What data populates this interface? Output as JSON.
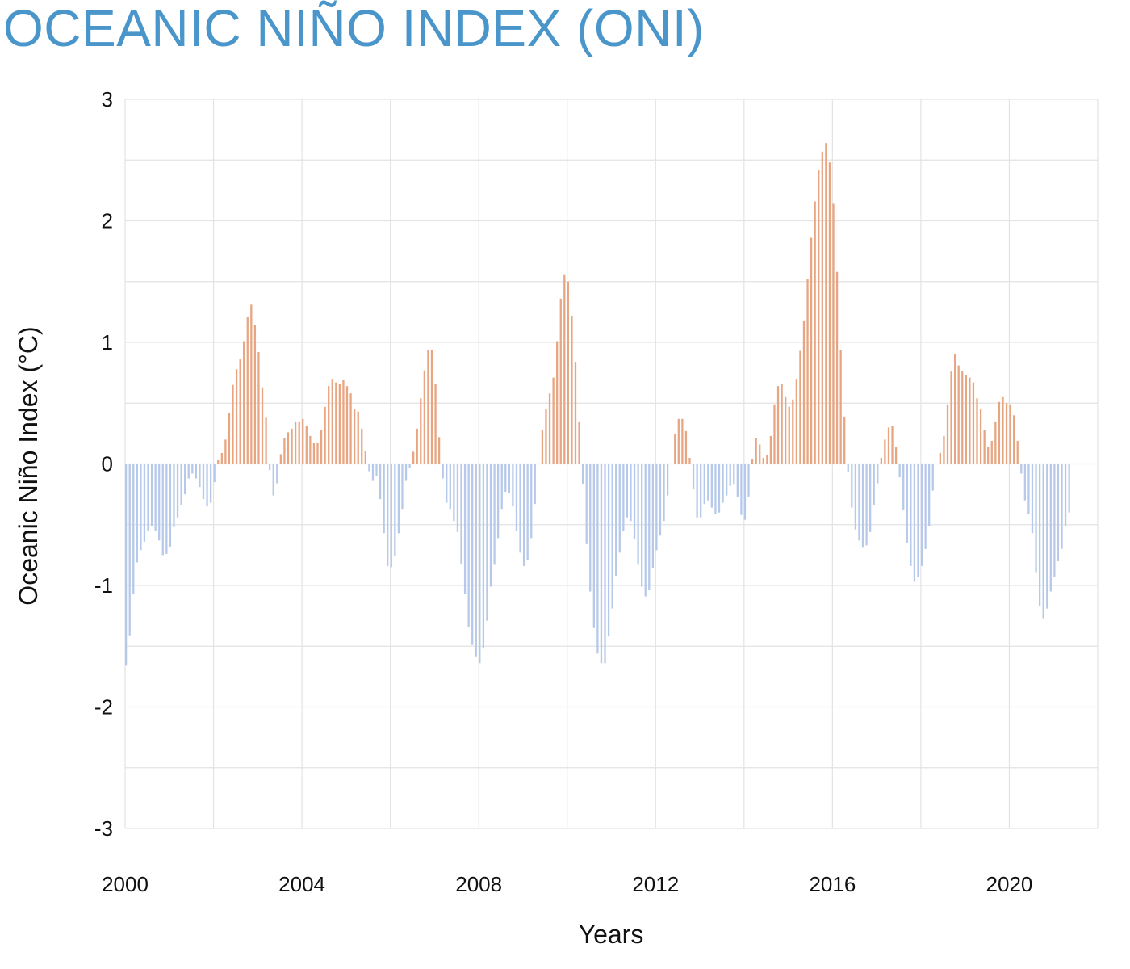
{
  "chart_data": {
    "type": "bar",
    "title": "OCEANIC NIÑO INDEX (ONI)",
    "xlabel": "Years",
    "ylabel": "Oceanic Niño Index (°C)",
    "ylim": [
      -3,
      3
    ],
    "xlim": [
      2000,
      2022
    ],
    "y_ticks": [
      "3",
      "2",
      "1",
      "0",
      "-1",
      "-2",
      "-3"
    ],
    "x_ticks": [
      "2000",
      "2004",
      "2008",
      "2012",
      "2016",
      "2020"
    ],
    "grid": true,
    "colors": {
      "positive": "#e8a582",
      "negative": "#b6c9ea",
      "title": "#4a96cb",
      "grid": "#e3e3e3"
    },
    "x_start": "2000-01",
    "interval": "monthly",
    "values": [
      -1.66,
      -1.41,
      -1.07,
      -0.81,
      -0.71,
      -0.64,
      -0.55,
      -0.51,
      -0.55,
      -0.63,
      -0.75,
      -0.74,
      -0.68,
      -0.52,
      -0.44,
      -0.34,
      -0.25,
      -0.12,
      -0.08,
      -0.12,
      -0.19,
      -0.29,
      -0.35,
      -0.32,
      -0.15,
      0.03,
      0.09,
      0.2,
      0.42,
      0.65,
      0.78,
      0.86,
      1.01,
      1.21,
      1.31,
      1.14,
      0.92,
      0.63,
      0.38,
      -0.05,
      -0.26,
      -0.16,
      0.08,
      0.21,
      0.26,
      0.29,
      0.35,
      0.35,
      0.37,
      0.31,
      0.23,
      0.17,
      0.17,
      0.28,
      0.47,
      0.64,
      0.7,
      0.67,
      0.66,
      0.69,
      0.64,
      0.58,
      0.45,
      0.43,
      0.29,
      0.11,
      -0.06,
      -0.14,
      -0.1,
      -0.29,
      -0.57,
      -0.84,
      -0.85,
      -0.76,
      -0.57,
      -0.37,
      -0.14,
      -0.03,
      0.1,
      0.29,
      0.54,
      0.77,
      0.94,
      0.94,
      0.66,
      0.22,
      -0.12,
      -0.32,
      -0.37,
      -0.47,
      -0.56,
      -0.82,
      -1.07,
      -1.34,
      -1.49,
      -1.59,
      -1.64,
      -1.52,
      -1.29,
      -1.01,
      -0.83,
      -0.61,
      -0.37,
      -0.23,
      -0.24,
      -0.35,
      -0.55,
      -0.73,
      -0.84,
      -0.79,
      -0.61,
      -0.33,
      0.0,
      0.28,
      0.45,
      0.58,
      0.71,
      1.01,
      1.36,
      1.56,
      1.5,
      1.22,
      0.84,
      0.35,
      -0.17,
      -0.66,
      -1.05,
      -1.35,
      -1.56,
      -1.64,
      -1.64,
      -1.42,
      -1.19,
      -0.92,
      -0.73,
      -0.55,
      -0.44,
      -0.47,
      -0.62,
      -0.83,
      -1.01,
      -1.09,
      -1.04,
      -0.86,
      -0.71,
      -0.59,
      -0.47,
      -0.26,
      0.0,
      0.25,
      0.37,
      0.37,
      0.27,
      0.05,
      -0.21,
      -0.44,
      -0.44,
      -0.33,
      -0.3,
      -0.36,
      -0.41,
      -0.4,
      -0.32,
      -0.26,
      -0.18,
      -0.17,
      -0.27,
      -0.42,
      -0.46,
      -0.27,
      0.04,
      0.21,
      0.16,
      0.05,
      0.07,
      0.23,
      0.49,
      0.64,
      0.66,
      0.55,
      0.47,
      0.53,
      0.7,
      0.93,
      1.18,
      1.52,
      1.86,
      2.16,
      2.42,
      2.57,
      2.64,
      2.48,
      2.14,
      1.58,
      0.94,
      0.39,
      -0.07,
      -0.36,
      -0.54,
      -0.63,
      -0.69,
      -0.67,
      -0.56,
      -0.34,
      -0.16,
      0.05,
      0.2,
      0.3,
      0.31,
      0.14,
      -0.11,
      -0.38,
      -0.65,
      -0.84,
      -0.97,
      -0.93,
      -0.84,
      -0.7,
      -0.51,
      -0.22,
      0.0,
      0.09,
      0.23,
      0.49,
      0.76,
      0.9,
      0.81,
      0.76,
      0.73,
      0.71,
      0.67,
      0.54,
      0.45,
      0.28,
      0.14,
      0.19,
      0.35,
      0.51,
      0.55,
      0.5,
      0.49,
      0.4,
      0.19,
      -0.08,
      -0.3,
      -0.41,
      -0.57,
      -0.89,
      -1.17,
      -1.27,
      -1.19,
      -1.05,
      -0.93,
      -0.8,
      -0.7,
      -0.51,
      -0.4
    ]
  }
}
